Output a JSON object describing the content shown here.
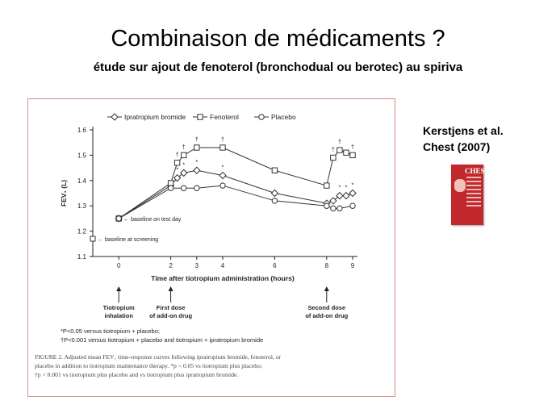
{
  "slide": {
    "title": "Combinaison de médicaments ?",
    "subtitle": "étude sur ajout de fenoterol (bronchodual ou berotec) au spiriva"
  },
  "citation": {
    "line1": "Kerstjens et al.",
    "line2": "Chest (2007)"
  },
  "journal_cover": {
    "title": "CHEST"
  },
  "figure": {
    "caption_1": "FIGURE 2. Adjusted mean FEV₁ time-response curves following ipratropium bromide, fenoterol, or",
    "caption_2": "placebo in addition to tiotropium maintenance therapy. *p < 0.05 vs tiotropium plus placebo;",
    "caption_3": "†p < 0.001 vs tiotropium plus placebo and vs tiotropium plus ipratropium bromide.",
    "footnote_1": "*P<0.05 versus tiotropium + placebo;",
    "footnote_2": "†P<0.001 versus tiotropium + placebo and tiotropium + ipratropium bromide",
    "annotation_test_day": "← baseline on test day",
    "annotation_screening": "← baseline at screening",
    "events": [
      {
        "text": [
          "Tiotropium",
          "inhalation"
        ],
        "x": 0
      },
      {
        "text": [
          "First dose",
          "of add-on drug"
        ],
        "x": 2
      },
      {
        "text": [
          "Second dose",
          "of add-on drug"
        ],
        "x": 8
      }
    ]
  },
  "chart_data": {
    "type": "line",
    "xlabel": "Time after tiotropium administration (hours)",
    "ylabel": "FEV₁ (L)",
    "xticks": [
      0,
      2,
      3,
      4,
      6,
      8,
      9
    ],
    "xlim": [
      -1,
      9
    ],
    "ylim": [
      1.1,
      1.6
    ],
    "yticks": [
      "1.1",
      "1.2",
      "1.3",
      "1.4",
      "1.5",
      "1.6"
    ],
    "baseline_test_day": {
      "x": 0,
      "y": 1.25
    },
    "baseline_screening": {
      "x": -1,
      "y": 1.17
    },
    "legend_placement": "top",
    "series": [
      {
        "name": "Ipratropium bromide",
        "marker": "diamond",
        "points": [
          [
            0,
            1.25
          ],
          [
            2,
            1.38
          ],
          [
            2.25,
            1.41
          ],
          [
            2.5,
            1.43
          ],
          [
            3,
            1.44
          ],
          [
            4,
            1.42
          ],
          [
            6,
            1.35
          ],
          [
            8,
            1.31
          ],
          [
            8.25,
            1.32
          ],
          [
            8.5,
            1.34
          ],
          [
            8.75,
            1.34
          ],
          [
            9,
            1.35
          ]
        ],
        "marks": [
          "",
          "",
          "*",
          "*",
          "*",
          "*",
          "",
          "",
          "",
          "*",
          "*",
          "*"
        ]
      },
      {
        "name": "Fenoterol",
        "marker": "square",
        "points": [
          [
            0,
            1.25
          ],
          [
            2,
            1.39
          ],
          [
            2.25,
            1.47
          ],
          [
            2.5,
            1.5
          ],
          [
            3,
            1.53
          ],
          [
            4,
            1.53
          ],
          [
            6,
            1.44
          ],
          [
            8,
            1.38
          ],
          [
            8.25,
            1.49
          ],
          [
            8.5,
            1.52
          ],
          [
            8.75,
            1.51
          ],
          [
            9,
            1.5
          ]
        ],
        "marks": [
          "",
          "",
          "†",
          "†",
          "†",
          "†",
          "",
          "",
          "†",
          "†",
          "",
          "†"
        ]
      },
      {
        "name": "Placebo",
        "marker": "circle",
        "points": [
          [
            0,
            1.25
          ],
          [
            2,
            1.37
          ],
          [
            2.5,
            1.37
          ],
          [
            3,
            1.37
          ],
          [
            4,
            1.38
          ],
          [
            6,
            1.32
          ],
          [
            8,
            1.3
          ],
          [
            8.25,
            1.29
          ],
          [
            8.5,
            1.29
          ],
          [
            9,
            1.3
          ]
        ],
        "marks": []
      }
    ],
    "colors": {
      "line": "#333333",
      "border": "#d98a86"
    }
  }
}
